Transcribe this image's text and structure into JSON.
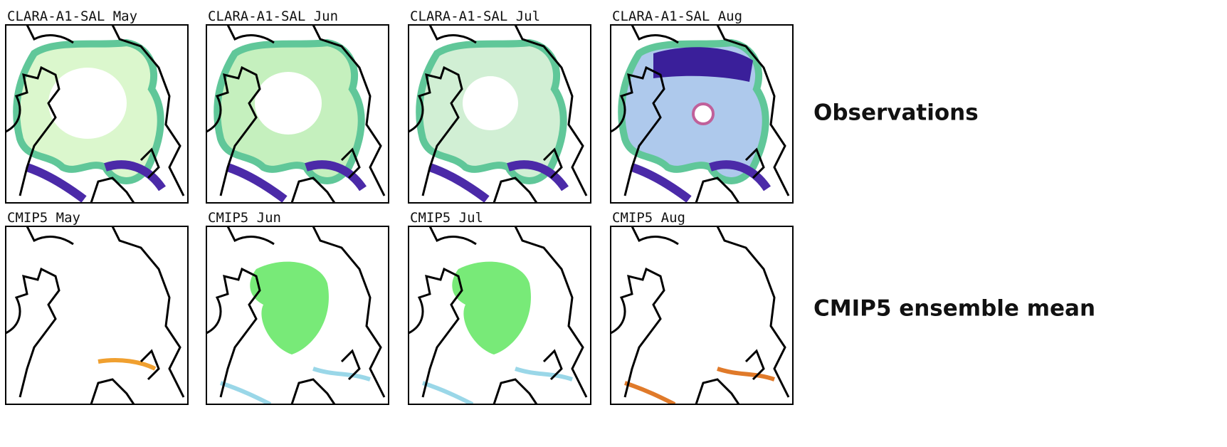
{
  "rows": [
    {
      "label": "Observations",
      "panels": [
        "CLARA-A1-SAL May",
        "CLARA-A1-SAL Jun",
        "CLARA-A1-SAL Jul",
        "CLARA-A1-SAL Aug"
      ]
    },
    {
      "label": "CMIP5 ensemble mean",
      "panels": [
        "CMIP5 May",
        "CMIP5 Jun",
        "CMIP5 Jul",
        "CMIP5 Aug"
      ]
    }
  ]
}
